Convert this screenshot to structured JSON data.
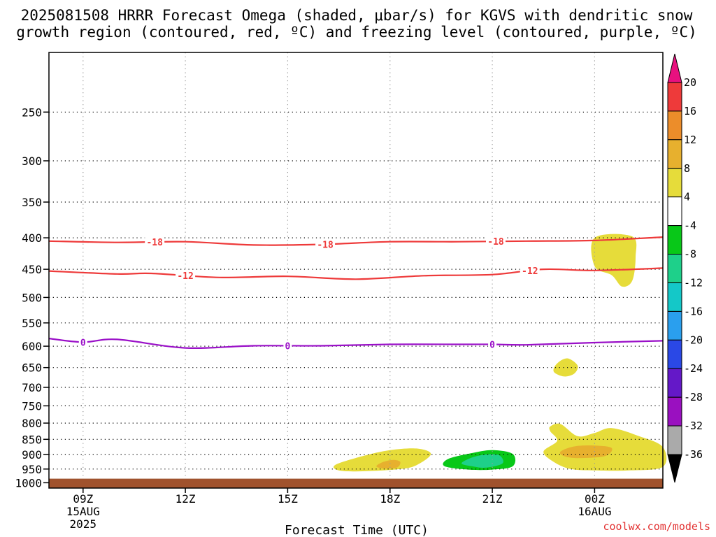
{
  "header": {
    "title_line1": "2025081508 HRRR Forecast Omega (shaded, μbar/s) for KGVS with dendritic snow",
    "title_line2": "growth region (contoured, red, ºC) and freezing level (contoured, purple, ºC)"
  },
  "credit": "coolwx.com/models",
  "chart_data": {
    "type": "time-height cross section",
    "xlabel": "Forecast Time (UTC)",
    "x_ticks": [
      {
        "hour": 9,
        "label": "09Z",
        "sub1": "15AUG",
        "sub2": "2025"
      },
      {
        "hour": 12,
        "label": "12Z",
        "sub1": "",
        "sub2": ""
      },
      {
        "hour": 15,
        "label": "15Z",
        "sub1": "",
        "sub2": ""
      },
      {
        "hour": 18,
        "label": "18Z",
        "sub1": "",
        "sub2": ""
      },
      {
        "hour": 21,
        "label": "21Z",
        "sub1": "",
        "sub2": ""
      },
      {
        "hour": 24,
        "label": "00Z",
        "sub1": "16AUG",
        "sub2": ""
      }
    ],
    "x_range_hours": [
      8,
      26
    ],
    "y_ticks": [
      250,
      300,
      350,
      400,
      450,
      500,
      550,
      600,
      650,
      700,
      750,
      800,
      850,
      900,
      950,
      1000
    ],
    "y_range_hPa": [
      200,
      1020
    ],
    "y_scale": "log-pressure",
    "grid": true,
    "ground_level_hPa": 985,
    "ground_color": "#a0522d",
    "omega_colorbar": {
      "labels": [
        "20",
        "16",
        "12",
        "8",
        "4",
        "-4",
        "-8",
        "-12",
        "-16",
        "-20",
        "-24",
        "-28",
        "-32",
        "-36"
      ],
      "colors": [
        "#e8117f",
        "#ee3a3a",
        "#ec8d2a",
        "#e7b02e",
        "#e6dc3a",
        "#ffffff",
        "#08c818",
        "#1ed08a",
        "#14c8c8",
        "#2a9fee",
        "#2a48e6",
        "#6418c8",
        "#9a10c0",
        "#aaaaaa",
        "#000000"
      ]
    },
    "dgz_contours": {
      "color": "#ee3a3a",
      "lines": [
        {
          "value": -18,
          "label": "-18",
          "points": [
            [
              8,
              405
            ],
            [
              10,
              407
            ],
            [
              12,
              406
            ],
            [
              14,
              411
            ],
            [
              16,
              410
            ],
            [
              18,
              406
            ],
            [
              20,
              406
            ],
            [
              22,
              405
            ],
            [
              24,
              404
            ],
            [
              26,
              399
            ]
          ],
          "label_hours": [
            11.1,
            16.1,
            21.1
          ]
        },
        {
          "value": -12,
          "label": "-12",
          "points": [
            [
              8,
              453
            ],
            [
              10,
              458
            ],
            [
              11,
              457
            ],
            [
              13,
              464
            ],
            [
              15,
              462
            ],
            [
              17,
              467
            ],
            [
              19,
              461
            ],
            [
              21,
              459
            ],
            [
              22.5,
              450
            ],
            [
              24,
              452
            ],
            [
              26,
              448
            ]
          ],
          "label_hours": [
            12.0,
            22.1
          ]
        }
      ]
    },
    "freezing_level": {
      "color": "#9a10c8",
      "value": 0,
      "label": "0",
      "points": [
        [
          8,
          583
        ],
        [
          9,
          591
        ],
        [
          10,
          585
        ],
        [
          12,
          604
        ],
        [
          14,
          599
        ],
        [
          16,
          599
        ],
        [
          18,
          596
        ],
        [
          20,
          596
        ],
        [
          21,
          596
        ],
        [
          22,
          597
        ],
        [
          24,
          592
        ],
        [
          26,
          588
        ]
      ],
      "label_hours": [
        9.0,
        15.0,
        21.0
      ]
    },
    "omega_shading": [
      {
        "value_range": [
          4,
          8
        ],
        "color": "#e6dc3a",
        "points": [
          [
            16.5,
            955
          ],
          [
            16.4,
            935
          ],
          [
            17.2,
            905
          ],
          [
            18,
            885
          ],
          [
            18.8,
            880
          ],
          [
            19.2,
            898
          ],
          [
            18.8,
            935
          ],
          [
            18.3,
            950
          ],
          [
            17.2,
            958
          ]
        ]
      },
      {
        "value_range": [
          8,
          12
        ],
        "color": "#e7b02e",
        "points": [
          [
            17.6,
            940
          ],
          [
            17.8,
            925
          ],
          [
            18.1,
            918
          ],
          [
            18.3,
            925
          ],
          [
            18.2,
            945
          ],
          [
            17.8,
            948
          ]
        ]
      },
      {
        "value_range": [
          -8,
          -4
        ],
        "color": "#08c818",
        "points": [
          [
            19.6,
            940
          ],
          [
            19.7,
            915
          ],
          [
            20.4,
            895
          ],
          [
            21,
            885
          ],
          [
            21.6,
            898
          ],
          [
            21.6,
            940
          ],
          [
            21,
            952
          ],
          [
            20.3,
            952
          ]
        ]
      },
      {
        "value_range": [
          -12,
          -8
        ],
        "color": "#1ed08a",
        "points": [
          [
            20.1,
            930
          ],
          [
            20.4,
            910
          ],
          [
            20.8,
            900
          ],
          [
            21.2,
            902
          ],
          [
            21.3,
            930
          ],
          [
            20.8,
            945
          ],
          [
            20.4,
            940
          ]
        ]
      },
      {
        "value_range": [
          4,
          8
        ],
        "color": "#e6dc3a",
        "points": [
          [
            24,
            400
          ],
          [
            25.1,
            398
          ],
          [
            25.2,
            430
          ],
          [
            25.1,
            470
          ],
          [
            24.8,
            480
          ],
          [
            24.5,
            460
          ],
          [
            24,
            445
          ]
        ]
      },
      {
        "value_range": [
          4,
          8
        ],
        "color": "#e6dc3a",
        "points": [
          [
            22.8,
            660
          ],
          [
            22.9,
            640
          ],
          [
            23.2,
            628
          ],
          [
            23.5,
            645
          ],
          [
            23.4,
            665
          ],
          [
            23.1,
            672
          ]
        ]
      },
      {
        "value_range": [
          4,
          8
        ],
        "color": "#e6dc3a",
        "points": [
          [
            22.7,
            810
          ],
          [
            23,
            803
          ],
          [
            23.5,
            840
          ],
          [
            24,
            830
          ],
          [
            24.5,
            815
          ],
          [
            25.3,
            840
          ],
          [
            26,
            875
          ],
          [
            26,
            942
          ],
          [
            25,
            955
          ],
          [
            24,
            955
          ],
          [
            23.3,
            950
          ],
          [
            22.8,
            925
          ],
          [
            22.5,
            890
          ],
          [
            22.9,
            855
          ],
          [
            22.7,
            825
          ]
        ]
      },
      {
        "value_range": [
          8,
          12
        ],
        "color": "#e7b02e",
        "points": [
          [
            23,
            890
          ],
          [
            23.4,
            873
          ],
          [
            24,
            870
          ],
          [
            24.5,
            878
          ],
          [
            24.3,
            905
          ],
          [
            23.5,
            912
          ],
          [
            23.1,
            905
          ]
        ]
      }
    ]
  }
}
